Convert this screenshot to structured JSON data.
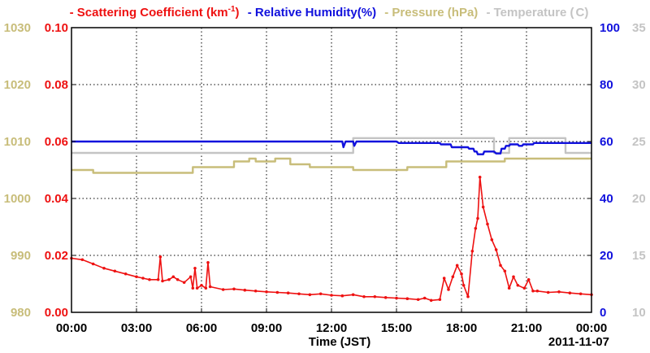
{
  "chart_data": {
    "type": "line",
    "xlabel": "Time (JST)",
    "date_label": "2011-11-07",
    "x_ticks": [
      "00:00",
      "03:00",
      "06:00",
      "09:00",
      "12:00",
      "15:00",
      "18:00",
      "21:00",
      "00:00"
    ],
    "x_range_hours": [
      0,
      24
    ],
    "grid": true,
    "colors": {
      "scattering": "#ee1111",
      "humidity": "#1111dd",
      "pressure": "#c8bd7a",
      "temperature": "#c4c4c4"
    },
    "legend": {
      "scattering_prefix": "- Scattering Coefficient (km",
      "scattering_sup": "-1",
      "scattering_suffix": ")",
      "humidity": "- Relative Humidity(%)",
      "pressure": "- Pressure (hPa)",
      "temperature": "- Temperature (",
      "temperature_unit": "C)"
    },
    "axes": {
      "pressure": {
        "ticks": [
          "1030",
          "1020",
          "1010",
          "1000",
          "990",
          "980"
        ],
        "range": [
          980,
          1030
        ]
      },
      "scattering": {
        "ticks": [
          "0.10",
          "0.08",
          "0.06",
          "0.04",
          "0.02",
          "0.00"
        ],
        "range": [
          0,
          0.1
        ]
      },
      "humidity": {
        "ticks": [
          "100",
          "80",
          "60",
          "40",
          "20",
          "0"
        ],
        "range": [
          0,
          100
        ]
      },
      "temperature": {
        "ticks": [
          "35",
          "30",
          "25",
          "20",
          "15",
          "10"
        ],
        "range": [
          10,
          35
        ]
      }
    },
    "series": [
      {
        "name": "Scattering Coefficient",
        "key": "scattering",
        "axis": "scattering",
        "points": [
          [
            0,
            0.019
          ],
          [
            0.5,
            0.0185
          ],
          [
            1,
            0.017
          ],
          [
            1.5,
            0.0155
          ],
          [
            2,
            0.0145
          ],
          [
            2.5,
            0.0135
          ],
          [
            3,
            0.0125
          ],
          [
            3.3,
            0.012
          ],
          [
            3.6,
            0.0115
          ],
          [
            4.0,
            0.0115
          ],
          [
            4.1,
            0.0195
          ],
          [
            4.2,
            0.011
          ],
          [
            4.5,
            0.0115
          ],
          [
            4.7,
            0.0125
          ],
          [
            4.9,
            0.0115
          ],
          [
            5.2,
            0.0105
          ],
          [
            5.5,
            0.0125
          ],
          [
            5.6,
            0.0085
          ],
          [
            5.7,
            0.0155
          ],
          [
            5.8,
            0.0085
          ],
          [
            6.0,
            0.0095
          ],
          [
            6.2,
            0.0085
          ],
          [
            6.3,
            0.0175
          ],
          [
            6.4,
            0.009
          ],
          [
            7,
            0.008
          ],
          [
            7.5,
            0.0082
          ],
          [
            8,
            0.0078
          ],
          [
            8.5,
            0.0075
          ],
          [
            9,
            0.0072
          ],
          [
            9.5,
            0.007
          ],
          [
            10,
            0.0068
          ],
          [
            10.5,
            0.0065
          ],
          [
            11,
            0.0062
          ],
          [
            11.5,
            0.0065
          ],
          [
            12,
            0.006
          ],
          [
            12.5,
            0.0058
          ],
          [
            13,
            0.0062
          ],
          [
            13.5,
            0.0055
          ],
          [
            14,
            0.0055
          ],
          [
            14.5,
            0.0052
          ],
          [
            15,
            0.005
          ],
          [
            15.5,
            0.0048
          ],
          [
            16,
            0.0045
          ],
          [
            16.3,
            0.005
          ],
          [
            16.6,
            0.0042
          ],
          [
            17.0,
            0.0045
          ],
          [
            17.2,
            0.012
          ],
          [
            17.4,
            0.008
          ],
          [
            17.6,
            0.0125
          ],
          [
            17.8,
            0.0165
          ],
          [
            18.0,
            0.0135
          ],
          [
            18.1,
            0.0095
          ],
          [
            18.3,
            0.0055
          ],
          [
            18.5,
            0.0215
          ],
          [
            18.65,
            0.0295
          ],
          [
            18.75,
            0.033
          ],
          [
            18.85,
            0.0475
          ],
          [
            19.0,
            0.037
          ],
          [
            19.2,
            0.031
          ],
          [
            19.4,
            0.0255
          ],
          [
            19.6,
            0.022
          ],
          [
            19.8,
            0.0165
          ],
          [
            20.0,
            0.0145
          ],
          [
            20.2,
            0.0085
          ],
          [
            20.4,
            0.0125
          ],
          [
            20.6,
            0.0095
          ],
          [
            20.9,
            0.0085
          ],
          [
            21.1,
            0.0115
          ],
          [
            21.3,
            0.0075
          ],
          [
            21.5,
            0.0075
          ],
          [
            22,
            0.007
          ],
          [
            22.5,
            0.0072
          ],
          [
            23,
            0.0068
          ],
          [
            23.5,
            0.0065
          ],
          [
            24,
            0.0062
          ]
        ]
      },
      {
        "name": "Relative Humidity",
        "key": "humidity",
        "axis": "humidity",
        "points": [
          [
            0,
            60
          ],
          [
            12.5,
            60
          ],
          [
            12.55,
            58
          ],
          [
            12.65,
            60
          ],
          [
            13.0,
            60
          ],
          [
            13.05,
            58.5
          ],
          [
            13.15,
            60
          ],
          [
            15.0,
            60
          ],
          [
            15.1,
            59.5
          ],
          [
            17.0,
            59.5
          ],
          [
            17.05,
            59
          ],
          [
            17.5,
            59
          ],
          [
            17.55,
            58
          ],
          [
            18.3,
            58
          ],
          [
            18.35,
            57.5
          ],
          [
            18.55,
            57.5
          ],
          [
            18.6,
            56.5
          ],
          [
            18.7,
            56.5
          ],
          [
            18.75,
            55.5
          ],
          [
            19.0,
            55.5
          ],
          [
            19.05,
            56.5
          ],
          [
            19.5,
            56.5
          ],
          [
            19.6,
            55.8
          ],
          [
            19.8,
            55.8
          ],
          [
            19.85,
            57.5
          ],
          [
            20.0,
            57.5
          ],
          [
            20.05,
            58.5
          ],
          [
            20.2,
            58.5
          ],
          [
            20.25,
            59
          ],
          [
            20.6,
            59
          ],
          [
            20.65,
            58.5
          ],
          [
            20.8,
            58.5
          ],
          [
            20.85,
            59
          ],
          [
            21.3,
            59
          ],
          [
            21.35,
            59.5
          ],
          [
            24,
            59.5
          ]
        ]
      },
      {
        "name": "Pressure",
        "key": "pressure",
        "axis": "pressure",
        "points": [
          [
            0,
            1005
          ],
          [
            1.0,
            1005
          ],
          [
            1.0,
            1004.5
          ],
          [
            5.6,
            1004.5
          ],
          [
            5.6,
            1005.5
          ],
          [
            7.5,
            1005.5
          ],
          [
            7.5,
            1006.5
          ],
          [
            8.2,
            1006.5
          ],
          [
            8.2,
            1007
          ],
          [
            8.5,
            1007
          ],
          [
            8.5,
            1006.5
          ],
          [
            9.4,
            1006.5
          ],
          [
            9.4,
            1007
          ],
          [
            10.1,
            1007
          ],
          [
            10.1,
            1006
          ],
          [
            11.0,
            1006
          ],
          [
            11.0,
            1005.5
          ],
          [
            13.0,
            1005.5
          ],
          [
            13.0,
            1005
          ],
          [
            15.5,
            1005
          ],
          [
            15.5,
            1005.5
          ],
          [
            17.3,
            1005.5
          ],
          [
            17.3,
            1006.5
          ],
          [
            20.0,
            1006.5
          ],
          [
            20.0,
            1007
          ],
          [
            24,
            1007
          ]
        ]
      },
      {
        "name": "Temperature",
        "key": "temperature",
        "axis": "temperature",
        "points": [
          [
            0,
            24
          ],
          [
            13.0,
            24
          ],
          [
            13.0,
            25.3
          ],
          [
            19.5,
            25.3
          ],
          [
            19.5,
            24
          ],
          [
            20.2,
            24
          ],
          [
            20.2,
            25.3
          ],
          [
            22.8,
            25.3
          ],
          [
            22.8,
            24
          ],
          [
            24,
            24
          ]
        ]
      }
    ]
  }
}
